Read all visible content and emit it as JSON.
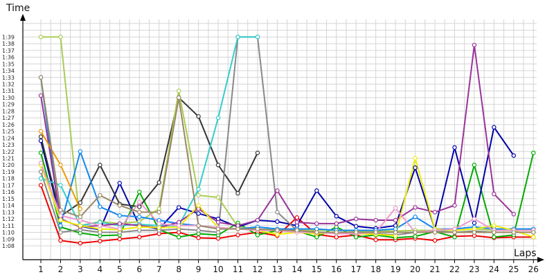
{
  "chart_data": {
    "type": "line",
    "title": "",
    "ylabel": "Time",
    "xlabel": "Laps",
    "x": [
      1,
      2,
      3,
      4,
      5,
      6,
      7,
      8,
      9,
      10,
      11,
      12,
      13,
      14,
      15,
      16,
      17,
      18,
      19,
      20,
      21,
      22,
      23,
      24,
      25,
      26
    ],
    "y_ticks": [
      "1:08",
      "1:09",
      "1:10",
      "1:11",
      "1:12",
      "1:13",
      "1:14",
      "1:15",
      "1:16",
      "1:17",
      "1:18",
      "1:19",
      "1:20",
      "1:21",
      "1:22",
      "1:23",
      "1:24",
      "1:25",
      "1:26",
      "1:27",
      "1:28",
      "1:29",
      "1:30",
      "1:31",
      "1:32",
      "1:33",
      "1:34",
      "1:35",
      "1:36",
      "1:37",
      "1:38",
      "1:39"
    ],
    "ylim_seconds": [
      67,
      99
    ],
    "grid": true,
    "legend": "none",
    "series": [
      {
        "color": "#ee0000",
        "values": [
          77.0,
          68.8,
          68.4,
          68.7,
          69.0,
          69.3,
          69.8,
          70.0,
          69.2,
          69.1,
          69.6,
          70.0,
          69.5,
          72.2,
          69.7,
          69.3,
          69.6,
          68.9,
          68.9,
          69.1,
          68.8,
          69.4,
          69.5,
          69.2,
          69.3,
          69.3
        ]
      },
      {
        "color": "#00aa00",
        "values": [
          81.8,
          70.8,
          69.9,
          69.5,
          69.6,
          76.0,
          70.4,
          69.3,
          69.8,
          69.6,
          71.4,
          69.6,
          70.3,
          70.2,
          69.3,
          70.8,
          69.3,
          69.6,
          69.2,
          69.4,
          70.1,
          69.3,
          80.0,
          69.3,
          69.6,
          81.8
        ]
      },
      {
        "color": "#0000aa",
        "values": [
          83.6,
          71.9,
          70.9,
          70.4,
          77.3,
          71.0,
          70.5,
          73.7,
          72.8,
          72.0,
          70.8,
          71.8,
          71.6,
          71.0,
          76.2,
          72.4,
          70.9,
          70.6,
          71.0,
          79.6,
          70.5,
          82.6,
          71.4,
          85.6,
          81.4,
          null
        ]
      },
      {
        "color": "#333333",
        "values": [
          84.2,
          72.4,
          74.4,
          80.0,
          74.2,
          73.8,
          77.4,
          90.0,
          87.2,
          80.0,
          75.8,
          81.8,
          null,
          null,
          null,
          null,
          null,
          null,
          null,
          null,
          null,
          null,
          null,
          null,
          null,
          null
        ]
      },
      {
        "color": "#888888",
        "values": [
          79.0,
          70.0,
          70.4,
          70.0,
          70.0,
          70.3,
          70.3,
          70.5,
          70.3,
          70.0,
          99.0,
          99.0,
          73.0,
          70.3,
          70.0,
          70.0,
          70.0,
          69.8,
          69.6,
          70.0,
          70.2,
          70.0,
          70.2,
          70.0,
          70.0,
          70.0
        ]
      },
      {
        "color": "#aacc55",
        "values": [
          99.0,
          99.0,
          71.0,
          71.6,
          71.3,
          71.6,
          73.5,
          91.0,
          75.5,
          75.2,
          70.8,
          70.5,
          70.3,
          70.3,
          70.3,
          70.3,
          70.2,
          70.2,
          70.2,
          70.3,
          70.3,
          70.3,
          70.5,
          70.3,
          70.3,
          70.3
        ]
      },
      {
        "color": "#33cccc",
        "values": [
          78.0,
          77.0,
          71.0,
          71.5,
          71.0,
          71.2,
          71.0,
          71.0,
          76.4,
          87.0,
          99.0,
          99.0,
          null,
          null,
          null,
          null,
          null,
          null,
          null,
          null,
          null,
          null,
          null,
          null,
          null,
          null
        ]
      },
      {
        "color": "#1188ee",
        "values": [
          93.0,
          71.0,
          82.0,
          73.8,
          72.5,
          72.3,
          71.8,
          71.3,
          71.0,
          70.7,
          70.5,
          70.8,
          70.5,
          70.5,
          70.5,
          70.3,
          70.3,
          70.3,
          70.5,
          72.3,
          70.5,
          70.5,
          70.8,
          70.5,
          70.5,
          70.5
        ]
      },
      {
        "color": "#993399",
        "values": [
          90.3,
          72.0,
          70.8,
          71.0,
          71.3,
          71.0,
          70.7,
          71.5,
          73.5,
          71.5,
          71.0,
          71.8,
          76.2,
          71.5,
          71.3,
          71.3,
          72.0,
          71.8,
          71.8,
          73.7,
          73.0,
          74.0,
          97.8,
          75.7,
          72.7,
          null
        ]
      },
      {
        "color": "#eeee00",
        "values": [
          80.0,
          71.8,
          71.0,
          70.5,
          70.4,
          70.8,
          70.7,
          70.8,
          74.0,
          70.7,
          70.5,
          70.3,
          69.7,
          70.0,
          69.8,
          70.0,
          69.8,
          69.7,
          69.5,
          81.0,
          70.5,
          70.3,
          70.5,
          71.0,
          70.3,
          69.3
        ]
      },
      {
        "color": "#ee9900",
        "values": [
          85.0,
          80.0,
          73.5,
          null,
          null,
          null,
          null,
          null,
          null,
          null,
          null,
          null,
          null,
          null,
          null,
          null,
          null,
          null,
          null,
          null,
          null,
          null,
          null,
          null,
          null,
          null
        ]
      },
      {
        "color": "#ee99cc",
        "values": [
          80.3,
          72.5,
          71.8,
          71.0,
          70.5,
          74.5,
          71.3,
          71.0,
          71.0,
          70.7,
          70.5,
          70.3,
          70.3,
          70.0,
          70.0,
          69.8,
          69.8,
          70.0,
          73.6,
          70.0,
          70.3,
          70.5,
          72.0,
          70.3,
          70.3,
          70.3
        ]
      },
      {
        "color": "#998866",
        "values": [
          93.0,
          73.3,
          72.3,
          75.5,
          74.0,
          73.0,
          73.0,
          90.0,
          71.0,
          70.5,
          70.5,
          70.5,
          70.3,
          70.3,
          70.0,
          70.0,
          70.0,
          70.0,
          70.0,
          70.0,
          70.0,
          70.0,
          70.0,
          70.0,
          70.0,
          70.0
        ]
      }
    ],
    "axis_color": "#000000",
    "grid_color": "#d4d4d4"
  }
}
